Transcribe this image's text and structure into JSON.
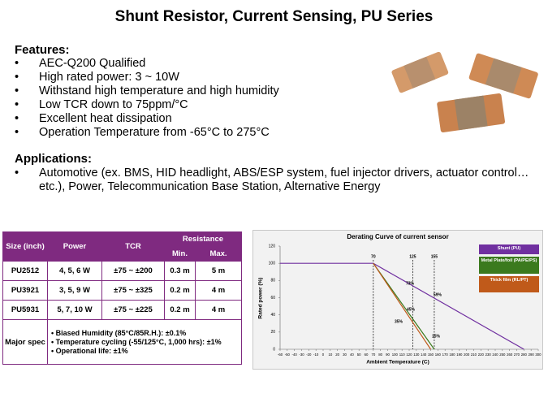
{
  "title": "Shunt Resistor, Current Sensing, PU Series",
  "features": {
    "heading": "Features:",
    "items": [
      "AEC-Q200 Qualified",
      "High rated power: 3 ~ 10W",
      "Withstand high temperature and high humidity",
      "Low TCR down to 75ppm/°C",
      "Excellent heat dissipation",
      "Operation Temperature from -65°C to 275°C"
    ]
  },
  "applications": {
    "heading": "Applications:",
    "items": [
      "Automotive (ex. BMS, HID headlight, ABS/ESP system, fuel injector drivers, actuator control… etc.), Power, Telecommunication  Base Station, Alternative Energy"
    ]
  },
  "table": {
    "header": {
      "size": "Size (inch)",
      "power": "Power",
      "tcr": "TCR",
      "resistance": "Resistance",
      "min": "Min.",
      "max": "Max."
    },
    "rows": [
      [
        "PU2512",
        "4, 5, 6 W",
        "±75 ~ ±200",
        "0.3 m",
        "5 m"
      ],
      [
        "PU3921",
        "3, 5, 9 W",
        "±75 ~ ±325",
        "0.2 m",
        "4 m"
      ],
      [
        "PU5931",
        "5, 7, 10 W",
        "±75 ~ ±225",
        "0.2 m",
        "4 m"
      ]
    ],
    "spec": {
      "label": "Major spec",
      "items": [
        "Biased Humidity (85°C/85R.H.):  ±0.1%",
        "Temperature  cycling (-55/125°C,  1,000  hrs): ±1%",
        "Operational  life: ±1%"
      ]
    }
  },
  "chart_data": {
    "type": "line",
    "title": "Derating Curve of current sensor",
    "x_label": "Ambient Temperature (C)",
    "y_label": "Rated power (%)",
    "xlim": [
      -60,
      300
    ],
    "ylim": [
      0,
      120
    ],
    "xticks": [
      -60,
      -50,
      -40,
      -30,
      -20,
      -10,
      0,
      10,
      20,
      30,
      40,
      50,
      60,
      70,
      80,
      90,
      100,
      110,
      120,
      130,
      140,
      150,
      160,
      170,
      180,
      190,
      200,
      210,
      220,
      230,
      240,
      250,
      260,
      270,
      280,
      290,
      300
    ],
    "yticks": [
      0,
      20,
      40,
      60,
      80,
      100,
      120
    ],
    "markers": [
      70,
      125,
      155
    ],
    "annotations": [
      "73%",
      "45%",
      "35%",
      "15%",
      "59%"
    ],
    "series": [
      {
        "name": "Shunt (PU)",
        "color": "#7030a0",
        "x": [
          -60,
          70,
          280
        ],
        "values": [
          100,
          100,
          0
        ]
      },
      {
        "name": "Metal Plate/foil (PA/PE/PS)",
        "color": "#3b7a1e",
        "x": [
          70,
          155
        ],
        "values": [
          100,
          0
        ]
      },
      {
        "name": "Thick film (RL/PT)",
        "color": "#c05a1a",
        "x": [
          70,
          150
        ],
        "values": [
          100,
          0
        ]
      }
    ]
  }
}
